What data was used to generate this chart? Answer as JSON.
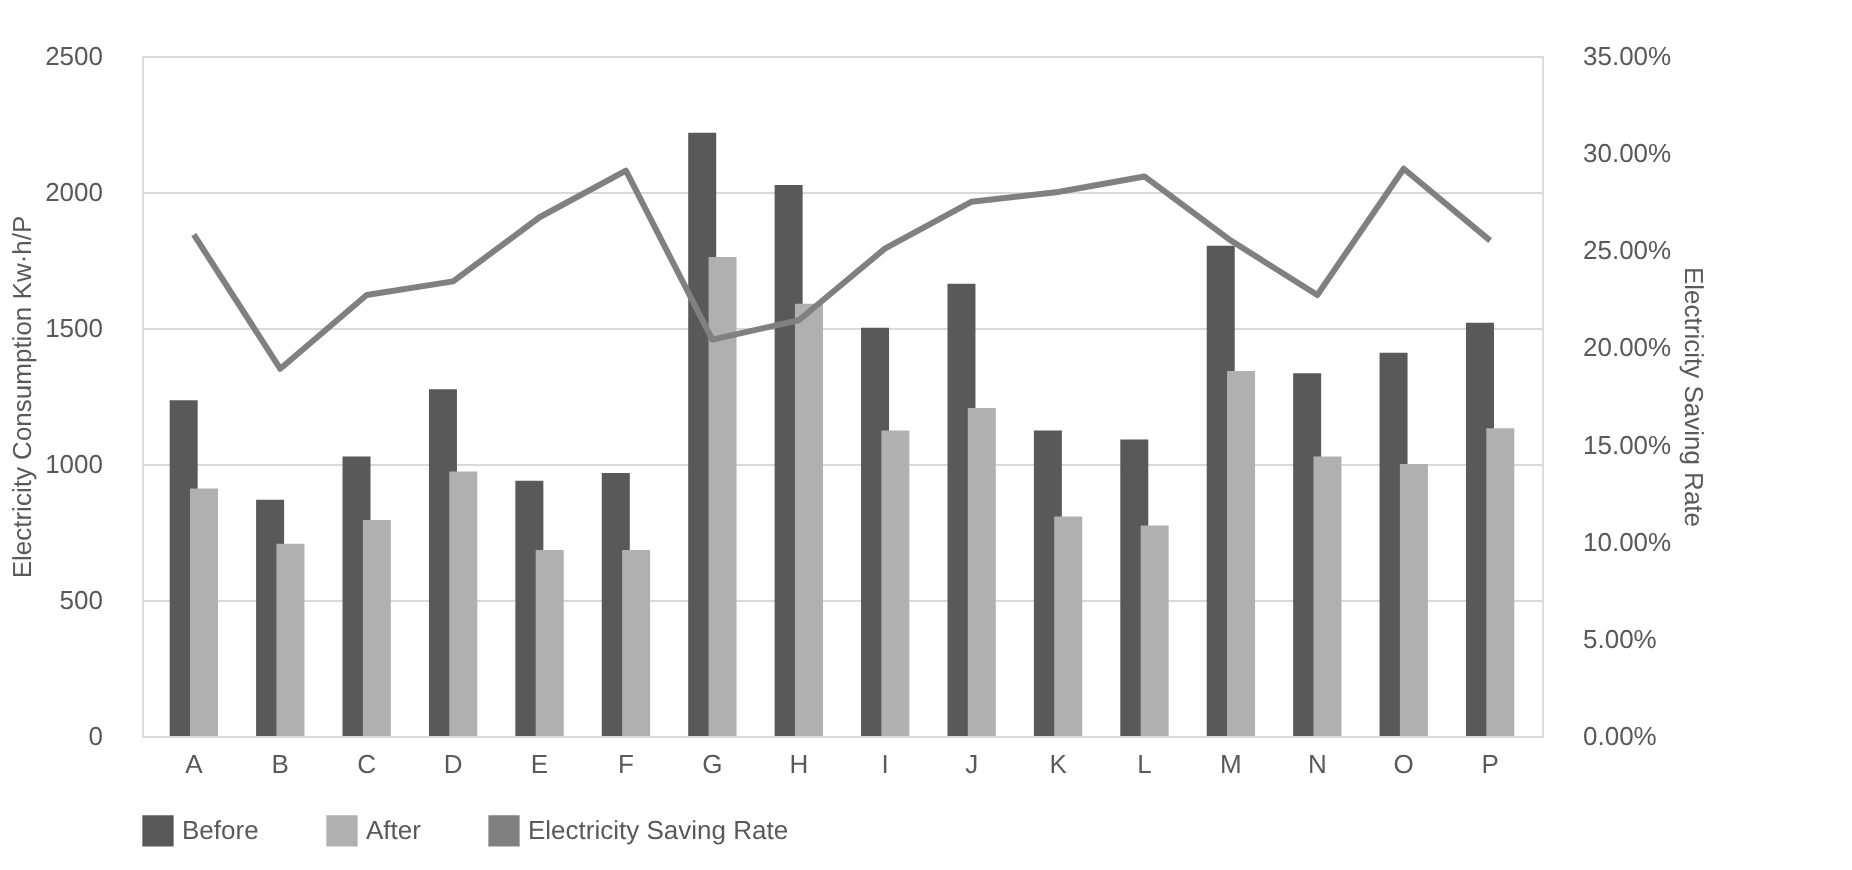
{
  "chart_data": {
    "type": "bar",
    "categories": [
      "A",
      "B",
      "C",
      "D",
      "E",
      "F",
      "G",
      "H",
      "I",
      "J",
      "K",
      "L",
      "M",
      "N",
      "O",
      "P"
    ],
    "series": [
      {
        "name": "Before",
        "color": "#595959",
        "values": [
          1234,
          869,
          1028,
          1275,
          938,
          967,
          2218,
          2026,
          1501,
          1663,
          1123,
          1090,
          1802,
          1334,
          1409,
          1519
        ]
      },
      {
        "name": "After",
        "color": "#b0b0b0",
        "values": [
          910,
          707,
          794,
          972,
          684,
          684,
          1761,
          1589,
          1123,
          1206,
          807,
          774,
          1342,
          1028,
          1000,
          1131
        ]
      },
      {
        "name": "Electricity Saving Rate",
        "type": "line",
        "axis": "y2",
        "color": "#808080",
        "values": [
          25.8,
          18.9,
          22.7,
          23.4,
          26.7,
          29.1,
          20.4,
          21.4,
          25.1,
          27.5,
          28.0,
          28.8,
          25.5,
          22.7,
          29.2,
          25.5
        ]
      }
    ],
    "ylabel": "Electricity Consumption Kw·h/P",
    "y2label": "Electricity Saving Rate",
    "ylim": [
      0,
      2500
    ],
    "yticks": [
      0,
      500,
      1000,
      1500,
      2000,
      2500
    ],
    "y2lim": [
      0,
      35
    ],
    "y2ticks": [
      {
        "value": 0,
        "label": "0.00%"
      },
      {
        "value": 5,
        "label": "5.00%"
      },
      {
        "value": 10,
        "label": "10.00%"
      },
      {
        "value": 15,
        "label": "15.00%"
      },
      {
        "value": 20,
        "label": "20.00%"
      },
      {
        "value": 25,
        "label": "25.00%"
      },
      {
        "value": 30,
        "label": "30.00%"
      },
      {
        "value": 35,
        "label": "35.00%"
      }
    ],
    "grid": "y",
    "legend": "bottom",
    "marker": "none"
  }
}
